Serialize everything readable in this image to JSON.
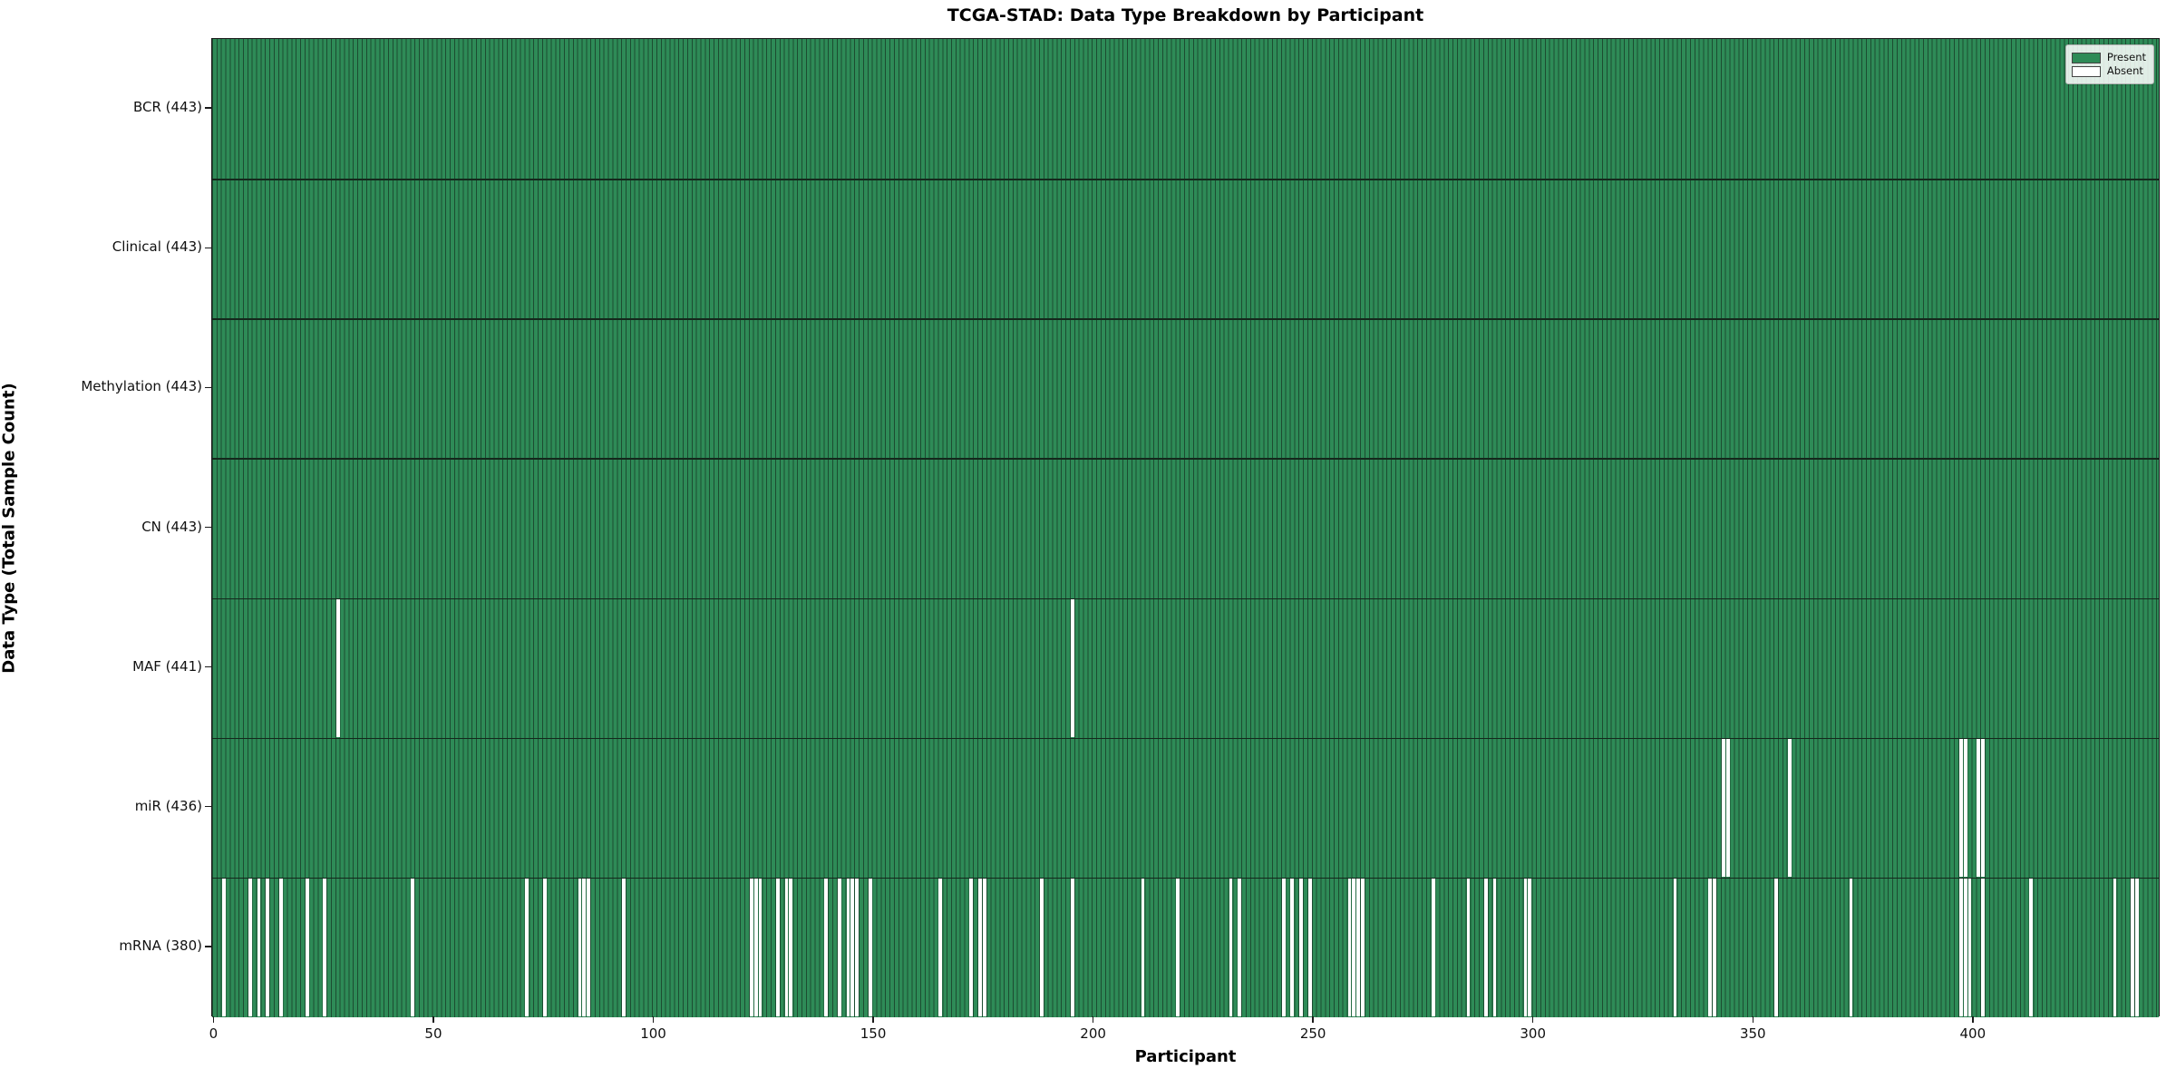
{
  "chart_data": {
    "type": "heatmap",
    "title": "TCGA-STAD: Data Type Breakdown by Participant",
    "xlabel": "Participant",
    "ylabel": "Data Type (Total Sample Count)",
    "x_ticks": [
      0,
      50,
      100,
      150,
      200,
      250,
      300,
      350,
      400
    ],
    "x_range": [
      -0.5,
      442.5
    ],
    "n_participants": 443,
    "grid": false,
    "legend": {
      "position": "upper right",
      "entries": [
        {
          "name": "present",
          "label": "Present",
          "color": "#2e8b57"
        },
        {
          "name": "absent",
          "label": "Absent",
          "color": "#ffffff"
        }
      ]
    },
    "colors": {
      "present": "#2e8b57",
      "absent": "#ffffff",
      "bar_edge": "#1c4c31",
      "divider": "#14281c",
      "spine": "#1a1a1a"
    },
    "rows": [
      {
        "label": "BCR (443)",
        "data_type": "BCR",
        "total": 443,
        "absent": []
      },
      {
        "label": "Clinical (443)",
        "data_type": "Clinical",
        "total": 443,
        "absent": []
      },
      {
        "label": "Methylation (443)",
        "data_type": "Methylation",
        "total": 443,
        "absent": []
      },
      {
        "label": "CN (443)",
        "data_type": "CN",
        "total": 443,
        "absent": []
      },
      {
        "label": "MAF (441)",
        "data_type": "MAF",
        "total": 441,
        "absent": [
          28,
          195
        ]
      },
      {
        "label": "miR (436)",
        "data_type": "miR",
        "total": 436,
        "absent": [
          343,
          344,
          358,
          397,
          398,
          401,
          402
        ]
      },
      {
        "label": "mRNA (380)",
        "data_type": "mRNA",
        "total": 380,
        "absent": [
          2,
          8,
          10,
          12,
          15,
          21,
          25,
          45,
          71,
          75,
          83,
          84,
          85,
          93,
          122,
          123,
          124,
          128,
          130,
          131,
          139,
          142,
          144,
          145,
          146,
          149,
          165,
          172,
          174,
          175,
          188,
          195,
          211,
          219,
          231,
          233,
          243,
          245,
          247,
          249,
          258,
          259,
          260,
          261,
          277,
          285,
          289,
          291,
          298,
          299,
          332,
          340,
          341,
          355,
          372,
          397,
          398,
          399,
          402,
          413,
          432,
          436,
          437
        ]
      }
    ]
  }
}
